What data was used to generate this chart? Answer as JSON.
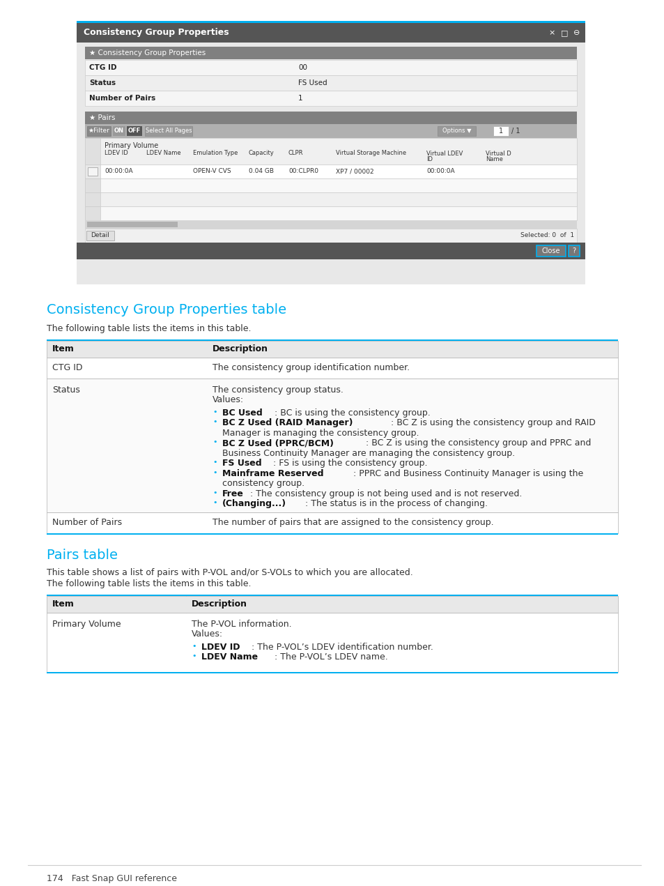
{
  "page_bg": "#ffffff",
  "bullet_color": "#00b0f0",
  "section1_title": "Consistency Group Properties table",
  "section1_title_color": "#00b0f0",
  "section1_intro": "The following table lists the items in this table.",
  "table1_header_row": [
    "Item",
    "Description"
  ],
  "table1_border_color": "#00b0f0",
  "section2_title": "Pairs table",
  "section2_title_color": "#00b0f0",
  "section2_intro1": "This table shows a list of pairs with P-VOL and/or S-VOLs to which you are allocated.",
  "section2_intro2": "The following table lists the items in this table.",
  "footer_text": "174   Fast Snap GUI reference",
  "ss_title": "Consistency Group Properties",
  "ss_sec1_hdr": "★ Consistency Group Properties",
  "ss_rows": [
    [
      "CTG ID",
      "00"
    ],
    [
      "Status",
      "FS Used"
    ],
    [
      "Number of Pairs",
      "1"
    ]
  ],
  "ss_sec2_hdr": "★ Pairs",
  "ss_col_headers": [
    "LDEV ID",
    "LDEV Name",
    "Emulation Type",
    "Capacity",
    "CLPR",
    "Virtual Storage Machine",
    "Virtual LDEV\nID",
    "Virtual D\nName"
  ],
  "ss_data_row": [
    "00:00:0A",
    "",
    "OPEN-V CVS",
    "0.04 GB",
    "00:CLPR0",
    "XP7 / 00002",
    "00:00:0A",
    ""
  ]
}
